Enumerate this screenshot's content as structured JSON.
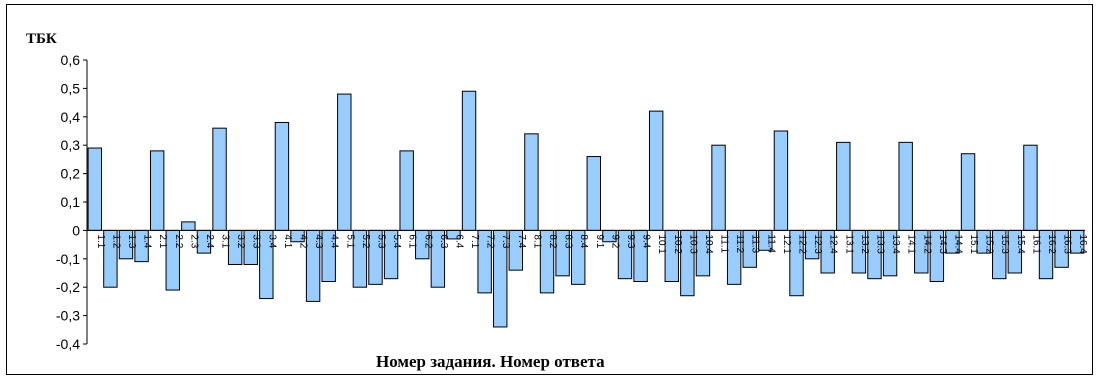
{
  "chart_data": {
    "type": "bar",
    "title": "",
    "ylabel": "ТБК",
    "xlabel": "Номер задания. Номер ответа",
    "ylim": [
      -0.4,
      0.6
    ],
    "yticks": [
      "-0,4",
      "-0,3",
      "-0,2",
      "-0,1",
      "0",
      "0,1",
      "0,2",
      "0,3",
      "0,4",
      "0,5",
      "0,6"
    ],
    "grid": false,
    "legend": "none",
    "bar_color": "#99CCFF",
    "categories": [
      "1.1",
      "1.2",
      "1.3",
      "1.4",
      "2.1",
      "2.2",
      "2.3",
      "2.4",
      "3.1",
      "3.2",
      "3.3",
      "3.4",
      "4.1",
      "4.2",
      "4.3",
      "4.4",
      "5.1",
      "5.2",
      "5.3",
      "5.4",
      "6.1",
      "6.2",
      "6.3",
      "6.4",
      "7.1",
      "7.2",
      "7.3",
      "7.4",
      "8.1",
      "8.2",
      "8.3",
      "8.4",
      "9.1",
      "9.2",
      "9.3",
      "9.4",
      "10.1",
      "10.2",
      "10.3",
      "10.4",
      "11.1",
      "11.2",
      "11.3",
      "11.4",
      "12.1",
      "12.2",
      "12.3",
      "12.4",
      "13.1",
      "13.2",
      "13.3",
      "13.4",
      "14.1",
      "14.2",
      "14.3",
      "14.4",
      "15.1",
      "15.2",
      "15.3",
      "15.4",
      "16.1",
      "16.2",
      "16.3",
      "16.4"
    ],
    "values": [
      0.29,
      -0.2,
      -0.1,
      -0.11,
      0.28,
      -0.21,
      0.03,
      -0.08,
      0.36,
      -0.12,
      -0.12,
      -0.24,
      0.38,
      -0.04,
      -0.25,
      -0.18,
      0.48,
      -0.2,
      -0.19,
      -0.17,
      0.28,
      -0.1,
      -0.2,
      -0.03,
      0.49,
      -0.22,
      -0.34,
      -0.14,
      0.34,
      -0.22,
      -0.16,
      -0.19,
      0.26,
      -0.04,
      -0.17,
      -0.18,
      0.42,
      -0.18,
      -0.23,
      -0.16,
      0.3,
      -0.19,
      -0.13,
      -0.07,
      0.35,
      -0.23,
      -0.1,
      -0.15,
      0.31,
      -0.15,
      -0.17,
      -0.16,
      0.31,
      -0.15,
      -0.18,
      -0.08,
      0.27,
      -0.08,
      -0.17,
      -0.15,
      0.3,
      -0.17,
      -0.13,
      -0.08
    ]
  }
}
